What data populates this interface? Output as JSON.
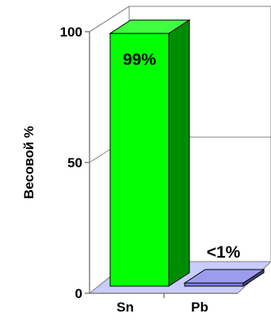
{
  "chart_data": {
    "type": "bar",
    "three_d": true,
    "ylabel": "Весовой %",
    "ylim": [
      0,
      100
    ],
    "yticks": [
      "0",
      "50",
      "100"
    ],
    "categories": [
      "Sn",
      "Pb"
    ],
    "values": [
      99,
      1
    ],
    "data_labels": [
      "99%",
      "<1%"
    ],
    "colors": [
      "#00ff00",
      "#7b7be8"
    ],
    "grid": true,
    "legend": "none"
  }
}
